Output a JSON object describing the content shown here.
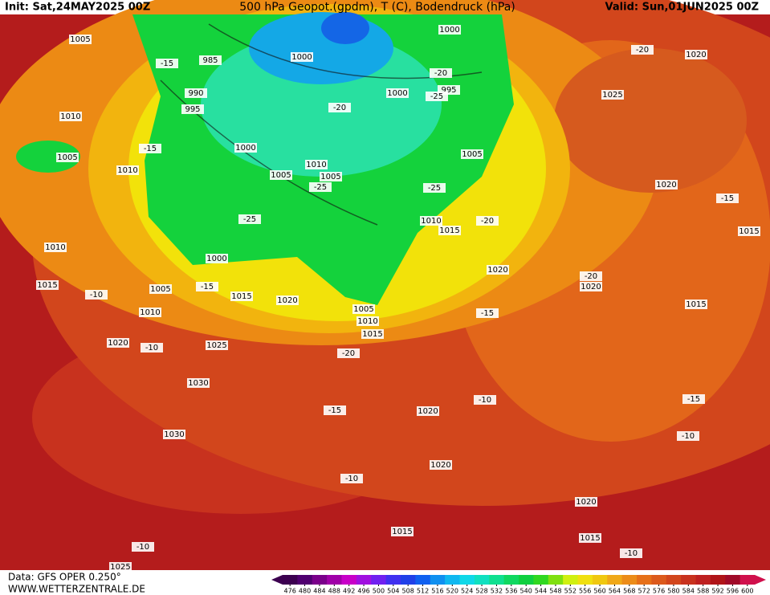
{
  "header": {
    "init": "Init: Sat,24MAY2025 00Z",
    "title": "500 hPa Geopot.(gpdm), T (C), Bodendruck (hPa)",
    "valid": "Valid: Sun,01JUN2025 00Z"
  },
  "footer": {
    "source": "Data: GFS OPER 0.250°",
    "website": "WWW.WETTERZENTRALE.DE"
  },
  "colorbar_ticks": [
    476,
    480,
    484,
    488,
    492,
    496,
    500,
    504,
    508,
    512,
    516,
    520,
    524,
    528,
    532,
    536,
    540,
    544,
    548,
    552,
    556,
    560,
    564,
    568,
    572,
    576,
    580,
    584,
    588,
    592,
    596,
    600
  ],
  "map_labels": [
    "1005",
    "985",
    "1000",
    "1000",
    "-20",
    "995",
    "-25",
    "990",
    "995",
    "-15",
    "1010",
    "1005",
    "1010",
    "1000",
    "-20",
    "1000",
    "1010",
    "1005",
    "1005",
    "-25",
    "-25",
    "1005",
    "-15",
    "1010",
    "1015",
    "-20",
    "-25",
    "1000",
    "1010",
    "1015",
    "-10",
    "1005",
    "-15",
    "1015",
    "1020",
    "1010",
    "1005",
    "1010",
    "1015",
    "1020",
    "-15",
    "1020",
    "-10",
    "1025",
    "-20",
    "1030",
    "1030",
    "-15",
    "1020",
    "-10",
    "1020",
    "-10",
    "1020",
    "1015",
    "1015",
    "-10",
    "-10",
    "-20",
    "1020",
    "1025",
    "1020",
    "-15",
    "1015",
    "-20",
    "1020",
    "1015",
    "-15",
    "-10",
    "1025"
  ]
}
